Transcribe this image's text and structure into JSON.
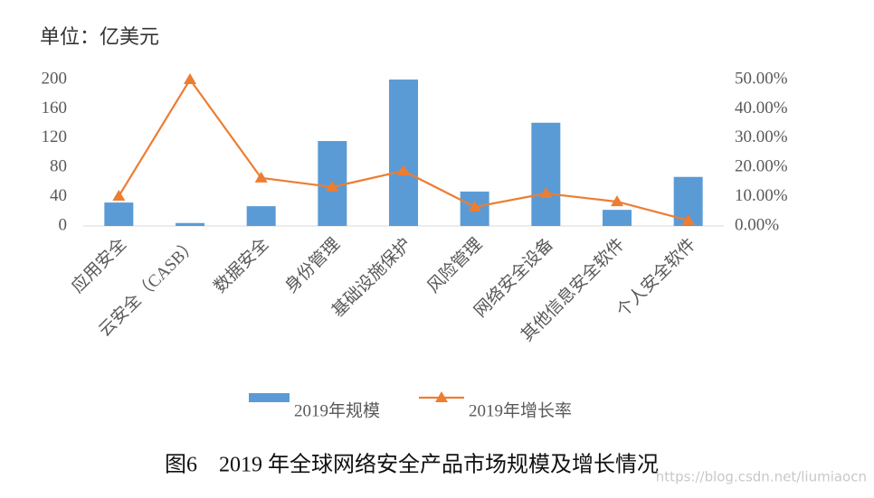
{
  "chart_data": {
    "type": "bar",
    "unit_label": "单位：亿美元",
    "title": "图6　2019 年全球网络安全产品市场规模及增长情况",
    "watermark": "https://blog.csdn.net/liumiaocn",
    "categories": [
      "应用安全",
      "云安全（CASB）",
      "数据安全",
      "身份管理",
      "基础设施保护",
      "风险管理",
      "网络安全设备",
      "其他信息安全软件",
      "个人安全软件"
    ],
    "series": [
      {
        "name": "2019年规模",
        "type": "bar",
        "color": "#5b9bd5",
        "values": [
          32,
          4,
          27,
          116,
          200,
          47,
          141,
          22,
          67
        ]
      },
      {
        "name": "2019年增长率",
        "type": "line",
        "axis": "y2",
        "color": "#ed7d31",
        "values": [
          10.2,
          50,
          16.4,
          13.3,
          18.8,
          6.5,
          11.1,
          8.3,
          1.9
        ]
      }
    ],
    "ylim": [
      0,
      200
    ],
    "yticks": [
      0,
      40,
      80,
      120,
      160,
      200
    ],
    "y2lim": [
      0,
      50
    ],
    "y2ticks": [
      {
        "value": 0,
        "label": "0.00%"
      },
      {
        "value": 10,
        "label": "10.00%"
      },
      {
        "value": 20,
        "label": "20.00%"
      },
      {
        "value": 30,
        "label": "30.00%"
      },
      {
        "value": 40,
        "label": "40.00%"
      },
      {
        "value": 50,
        "label": "50.00%"
      }
    ],
    "grid": false
  }
}
